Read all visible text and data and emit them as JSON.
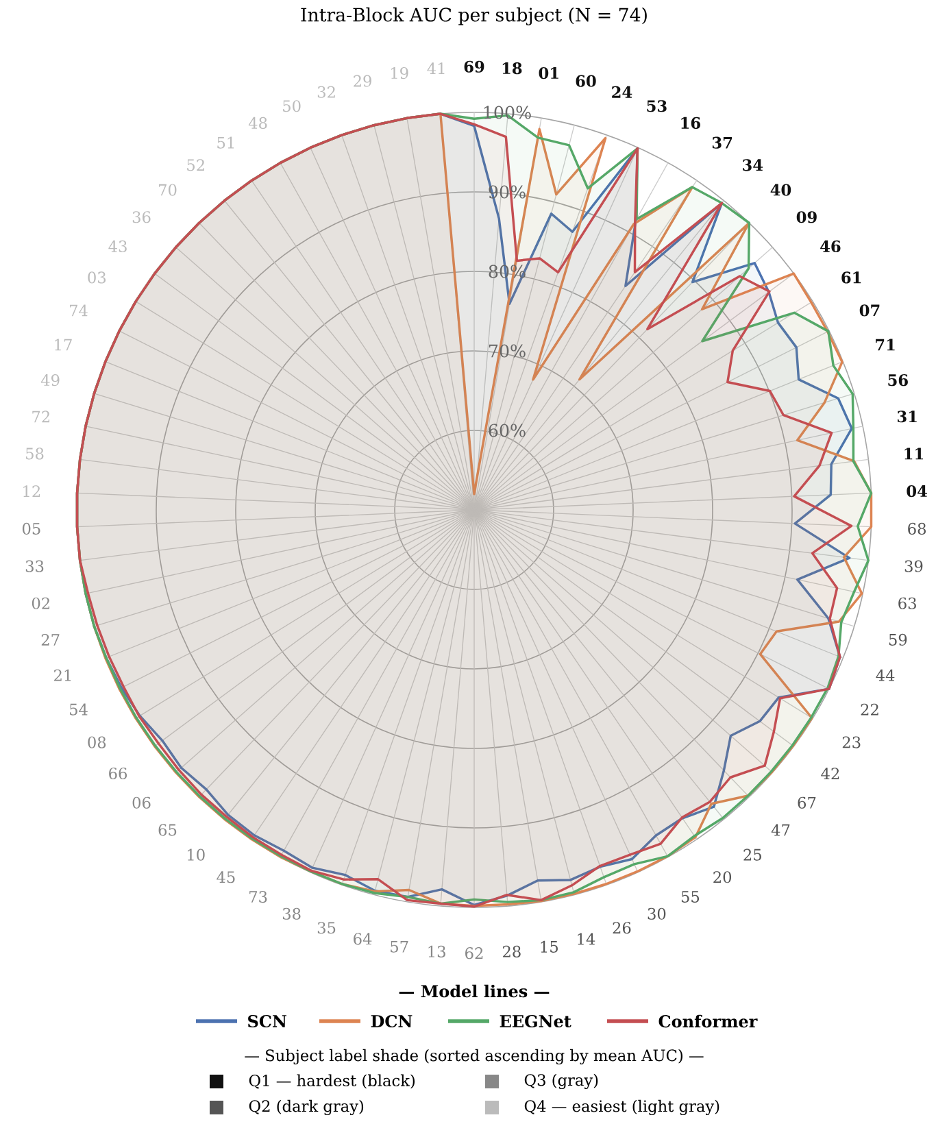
{
  "chart_data": {
    "type": "radar",
    "title": "Intra-Block AUC per subject (N = 74)",
    "legend_title": "— Model lines —",
    "categories": [
      "69",
      "18",
      "01",
      "60",
      "24",
      "53",
      "16",
      "37",
      "34",
      "40",
      "09",
      "46",
      "61",
      "07",
      "71",
      "56",
      "31",
      "11",
      "04",
      "68",
      "39",
      "63",
      "59",
      "44",
      "22",
      "23",
      "42",
      "67",
      "47",
      "25",
      "20",
      "55",
      "30",
      "26",
      "14",
      "15",
      "28",
      "62",
      "13",
      "57",
      "64",
      "35",
      "38",
      "73",
      "45",
      "10",
      "65",
      "06",
      "66",
      "08",
      "54",
      "21",
      "27",
      "02",
      "33",
      "05",
      "12",
      "58",
      "72",
      "49",
      "17",
      "74",
      "03",
      "43",
      "36",
      "70",
      "52",
      "51",
      "48",
      "50",
      "32",
      "29",
      "19",
      "41"
    ],
    "colors": [
      "#111111",
      "#111111",
      "#111111",
      "#111111",
      "#111111",
      "#111111",
      "#111111",
      "#111111",
      "#111111",
      "#111111",
      "#111111",
      "#111111",
      "#111111",
      "#111111",
      "#111111",
      "#111111",
      "#111111",
      "#111111",
      "#111111",
      "#555555",
      "#555555",
      "#555555",
      "#555555",
      "#555555",
      "#555555",
      "#555555",
      "#555555",
      "#555555",
      "#555555",
      "#555555",
      "#555555",
      "#555555",
      "#555555",
      "#555555",
      "#555555",
      "#555555",
      "#555555",
      "#888888",
      "#888888",
      "#888888",
      "#888888",
      "#888888",
      "#888888",
      "#888888",
      "#888888",
      "#888888",
      "#888888",
      "#888888",
      "#888888",
      "#888888",
      "#888888",
      "#888888",
      "#888888",
      "#888888",
      "#888888",
      "#888888",
      "#bbbbbb",
      "#bbbbbb",
      "#bbbbbb",
      "#bbbbbb",
      "#bbbbbb",
      "#bbbbbb",
      "#bbbbbb",
      "#bbbbbb",
      "#bbbbbb",
      "#bbbbbb",
      "#bbbbbb",
      "#bbbbbb",
      "#bbbbbb",
      "#bbbbbb",
      "#bbbbbb",
      "#bbbbbb",
      "#bbbbbb",
      "#bbbbbb"
    ],
    "series": [
      {
        "name": "SCN",
        "color": "#4c72b0",
        "values": [
          98.3,
          86.8,
          76.3,
          88.5,
          87.1,
          99.9,
          91.7,
          84.0,
          99.6,
          89.7,
          97.0,
          96.1,
          94.9,
          95.4,
          94.0,
          97.9,
          98.6,
          95.3,
          94.9,
          90.4,
          97.6,
          91.6,
          96.6,
          99.6,
          100,
          95.0,
          94.7,
          93.0,
          95.4,
          98.0,
          96.8,
          96.9,
          98.2,
          97.6,
          98.1,
          97.3,
          98.7,
          99.7,
          97.9,
          99.4,
          99.5,
          98.7,
          99.4,
          99.1,
          99.4,
          99.3,
          98.7,
          99.1,
          98.8,
          99.4,
          99.7,
          99.9,
          100,
          100,
          100,
          100,
          100,
          100,
          100,
          100,
          100,
          100,
          100,
          100,
          100,
          100,
          100,
          100,
          100,
          100,
          100,
          100,
          100,
          100
        ]
      },
      {
        "name": "DCN",
        "color": "#dd8452",
        "values": [
          52.0,
          54.0,
          98.6,
          91.0,
          99.6,
          68.0,
          91.2,
          99.0,
          71.1,
          99.9,
          88.2,
          100,
          99.8,
          99.8,
          99.9,
          96.1,
          91.6,
          98.2,
          100,
          100,
          96.9,
          99.9,
          98.0,
          91.0,
          90.3,
          99.9,
          99.9,
          99.9,
          99.8,
          97.5,
          99.7,
          99.9,
          99.9,
          99.9,
          99.9,
          99.9,
          99.8,
          99.8,
          99.7,
          98.5,
          99.6,
          99.9,
          99.9,
          100,
          100,
          100,
          100,
          100,
          100,
          100,
          100,
          100,
          100,
          100,
          100,
          100,
          100,
          100,
          100,
          100,
          100,
          100,
          100,
          100,
          100,
          100,
          100,
          100,
          100,
          100,
          100,
          100,
          100,
          100
        ]
      },
      {
        "name": "EEGNet",
        "color": "#55a868",
        "values": [
          99.2,
          99.8,
          97.5,
          97.4,
          92.9,
          99.9,
          91.9,
          99.0,
          99.6,
          100,
          96.0,
          85.7,
          97.3,
          99.9,
          98.7,
          99.8,
          98.8,
          98.1,
          100,
          98.3,
          100,
          98.9,
          98.3,
          99.4,
          99.8,
          99.8,
          99.8,
          99.8,
          99.8,
          99.8,
          99.5,
          99.9,
          98.9,
          99.0,
          99.7,
          99.8,
          99.5,
          99.0,
          99.7,
          99.4,
          99.8,
          99.9,
          99.9,
          99.9,
          99.9,
          99.9,
          99.9,
          99.9,
          99.9,
          99.9,
          99.9,
          99.9,
          100,
          100,
          100,
          100,
          100,
          100,
          100,
          100,
          100,
          100,
          100,
          100,
          100,
          100,
          100,
          100,
          100,
          100,
          100,
          100,
          100,
          100
        ]
      },
      {
        "name": "Conformer",
        "color": "#c44e52",
        "values": [
          98.5,
          97.1,
          81.8,
          82.7,
          81.7,
          99.9,
          91.5,
          86.1,
          99.6,
          81.5,
          94.5,
          96.2,
          88.2,
          85.7,
          90.1,
          90.7,
          96.0,
          93.8,
          90.3,
          97.5,
          92.9,
          96.7,
          96.8,
          99.6,
          100,
          95.2,
          96.9,
          98.7,
          96.6,
          97.2,
          96.7,
          98.1,
          97.6,
          97.5,
          98.8,
          99.8,
          98.6,
          99.9,
          99.7,
          99.8,
          98.0,
          99.3,
          99.8,
          99.7,
          99.7,
          99.6,
          99.6,
          99.5,
          99.4,
          99.5,
          99.4,
          99.5,
          99.6,
          99.7,
          100,
          100,
          100,
          100,
          100,
          100,
          100,
          100,
          100,
          100,
          100,
          100,
          100,
          100,
          100,
          100,
          100,
          100,
          100,
          100
        ]
      }
    ],
    "ylim": [
      50,
      100
    ],
    "yticks": [
      {
        "value": 60,
        "label": "60%"
      },
      {
        "value": 70,
        "label": "70%"
      },
      {
        "value": 80,
        "label": "80%"
      },
      {
        "value": 90,
        "label": "90%"
      },
      {
        "value": 100,
        "label": "100%"
      }
    ],
    "grid": true,
    "legend": "bottom",
    "line_style": "solid",
    "annotations": [
      "— Subject label shade (sorted ascending by mean AUC) —",
      "Q1 — hardest (black)",
      "Q2 (dark gray)",
      "Q3 (gray)",
      "Q4 — easiest (light gray)"
    ]
  }
}
